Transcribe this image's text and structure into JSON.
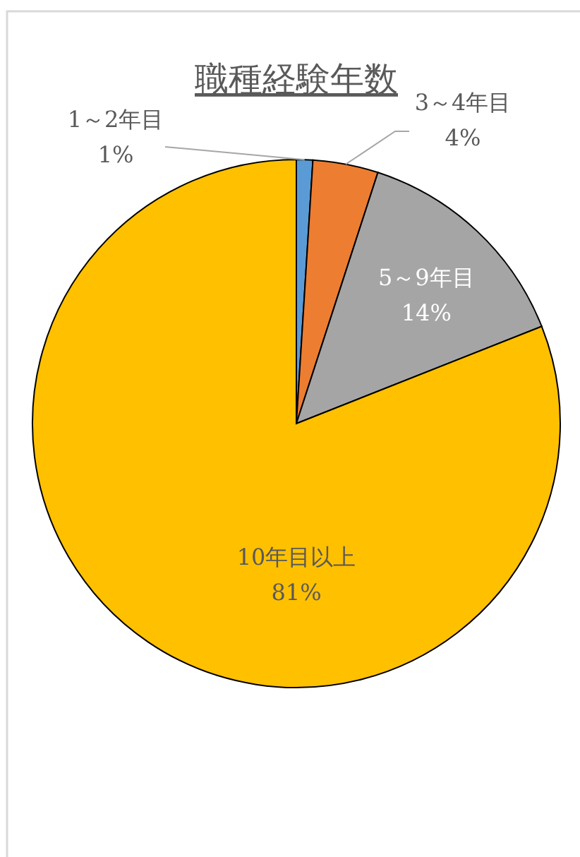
{
  "chart_data": {
    "type": "pie",
    "title": "職種経験年数",
    "categories": [
      "1～2年目",
      "3～4年目",
      "5～9年目",
      "10年目以上"
    ],
    "values": [
      1,
      4,
      14,
      81
    ],
    "colors": [
      "#5b9bd5",
      "#ed7d31",
      "#a5a5a5",
      "#ffc000"
    ],
    "value_labels": [
      "1%",
      "4%",
      "14%",
      "81%"
    ]
  }
}
